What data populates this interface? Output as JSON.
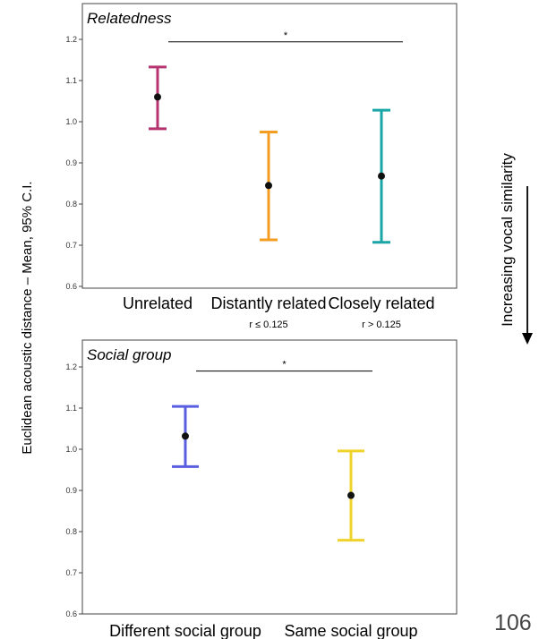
{
  "figure": {
    "ylabel": "Euclidean acoustic distance – Mean, 95% C.I.",
    "side_label": "Increasing vocal similarity",
    "page_number": "106"
  },
  "chart_data": [
    {
      "type": "errorbar",
      "title": "Relatedness",
      "ylim": [
        0.6,
        1.2
      ],
      "yticks": [
        "0.6",
        "0.7",
        "0.8",
        "0.9",
        "1.0",
        "1.1",
        "1.2"
      ],
      "categories": [
        "Unrelated",
        "Distantly related",
        "Closely related"
      ],
      "sublabels": [
        "",
        "r ≤ 0.125",
        "r > 0.125"
      ],
      "mean": [
        1.06,
        0.845,
        0.868
      ],
      "lower": [
        0.983,
        0.713,
        0.707
      ],
      "upper": [
        1.133,
        0.975,
        1.028
      ],
      "colors": [
        "#b5346f",
        "#f59c23",
        "#1aa6a6"
      ],
      "significance": {
        "from": 0,
        "to": 2,
        "label": "*",
        "y": 1.194
      }
    },
    {
      "type": "errorbar",
      "title": "Social group",
      "ylim": [
        0.6,
        1.2
      ],
      "yticks": [
        "0.6",
        "0.7",
        "0.8",
        "0.9",
        "1.0",
        "1.1",
        "1.2"
      ],
      "categories": [
        "Different social group",
        "Same social group"
      ],
      "sublabels": [
        "",
        ""
      ],
      "mean": [
        1.032,
        0.888
      ],
      "lower": [
        0.958,
        0.779
      ],
      "upper": [
        1.104,
        0.996
      ],
      "colors": [
        "#5a5fe0",
        "#efd32b"
      ],
      "significance": {
        "from": 0,
        "to": 1,
        "label": "*",
        "y": 1.19
      }
    }
  ]
}
